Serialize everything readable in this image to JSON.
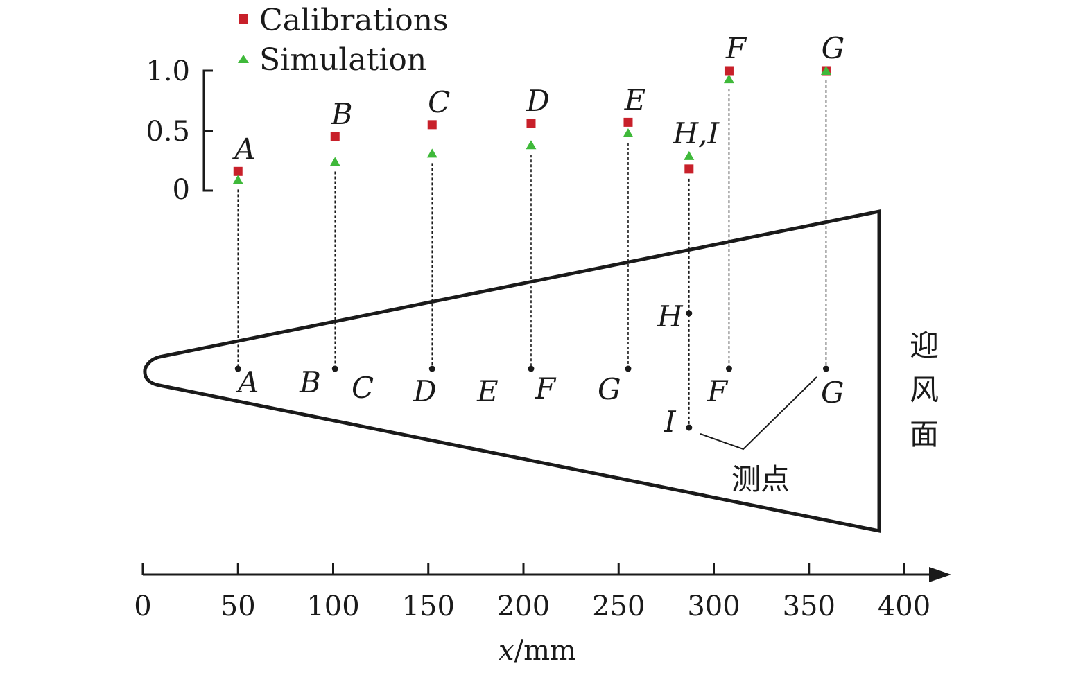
{
  "chart_data": {
    "type": "scatter",
    "legend": {
      "placement": "top-left",
      "entries": [
        {
          "name": "Calibrations",
          "marker": "square",
          "color": "#c8202a"
        },
        {
          "name": "Simulation",
          "marker": "triangle",
          "color": "#3fb93a"
        }
      ]
    },
    "y_axis": {
      "ylim": [
        0,
        1.0
      ],
      "ticks": [
        "0",
        "0.5",
        "1.0"
      ]
    },
    "x_axis": {
      "xlabel_italic": "x",
      "xlabel_unit": "/mm",
      "xlim": [
        0,
        400
      ],
      "ticks": [
        "0",
        "50",
        "100",
        "150",
        "200",
        "250",
        "300",
        "350",
        "400"
      ]
    },
    "points": [
      {
        "label": "A",
        "x": 50,
        "calibration": 0.16,
        "simulation": 0.09
      },
      {
        "label": "B",
        "x": 101,
        "calibration": 0.45,
        "simulation": 0.24
      },
      {
        "label": "C",
        "x": 152,
        "calibration": 0.55,
        "simulation": 0.31
      },
      {
        "label": "D",
        "x": 204,
        "calibration": 0.56,
        "simulation": 0.38
      },
      {
        "label": "E",
        "x": 255,
        "calibration": 0.57,
        "simulation": 0.48
      },
      {
        "label": "H,I",
        "x": 287,
        "calibration": 0.18,
        "simulation": 0.29
      },
      {
        "label": "F",
        "x": 308,
        "calibration": 1.0,
        "simulation": 0.93
      },
      {
        "label": "G",
        "x": 359,
        "calibration": 1.0,
        "simulation": 1.0
      }
    ],
    "profile_labels": [
      {
        "text": "A"
      },
      {
        "text": "B"
      },
      {
        "text": "C"
      },
      {
        "text": "D"
      },
      {
        "text": "E"
      },
      {
        "text": "F"
      },
      {
        "text": "G"
      },
      {
        "text": "H"
      },
      {
        "text": "I"
      },
      {
        "text": "F"
      },
      {
        "text": "G"
      }
    ],
    "annotations": {
      "measure_points": "测点",
      "windward_side": [
        "迎",
        "风",
        "面"
      ]
    }
  }
}
